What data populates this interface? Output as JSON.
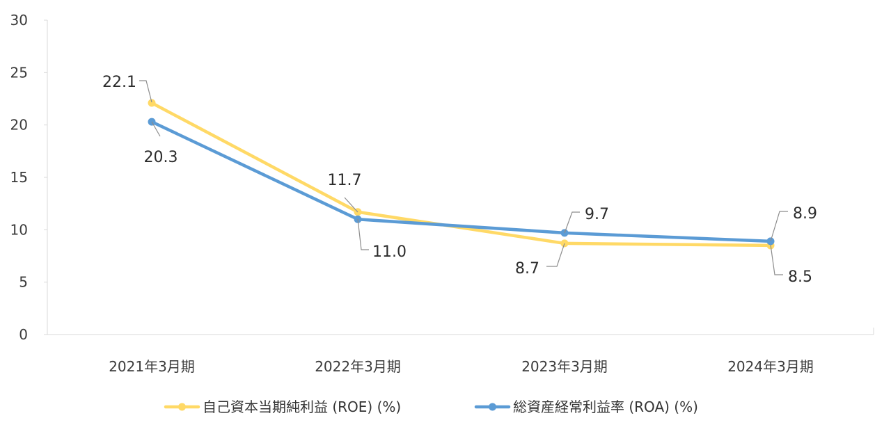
{
  "colors": {
    "roe": "#FFD966",
    "roa": "#5B9BD5",
    "axis": "#d9d9d9",
    "text": "#333333"
  },
  "chart_data": {
    "type": "line",
    "title": "",
    "xlabel": "",
    "ylabel": "",
    "categories": [
      "2021年3月期",
      "2022年3月期",
      "2023年3月期",
      "2024年3月期"
    ],
    "ylim": [
      0,
      30
    ],
    "yticks": [
      "0",
      "5",
      "10",
      "15",
      "20",
      "25",
      "30"
    ],
    "grid": false,
    "legend_position": "bottom",
    "series": [
      {
        "name": "自己資本当期純利益 (ROE) (%)",
        "values": [
          22.1,
          11.7,
          8.7,
          8.5
        ],
        "labels": [
          "22.1",
          "11.7",
          "8.7",
          "8.5"
        ]
      },
      {
        "name": "総資産経常利益率 (ROA) (%)",
        "values": [
          20.3,
          11.0,
          9.7,
          8.9
        ],
        "labels": [
          "20.3",
          "11.0",
          "9.7",
          "8.9"
        ]
      }
    ]
  }
}
